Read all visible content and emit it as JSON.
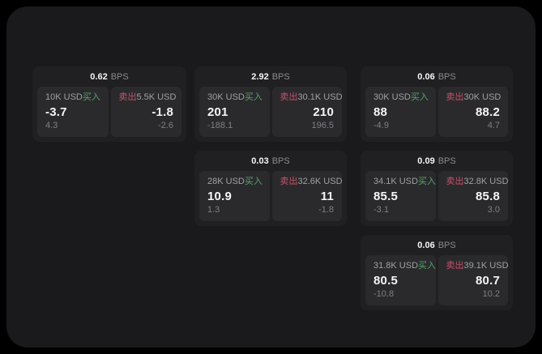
{
  "labels": {
    "bps_unit": "BPS",
    "buy": "买入",
    "sell": "卖出"
  },
  "colors": {
    "page_bg": "#000000",
    "window_bg": "#1a1a1c",
    "card_bg": "#202023",
    "panel_bg": "#2a2a2d",
    "buy_green": "#55a468",
    "sell_red": "#c9506a",
    "value_white": "#f5f5f6",
    "label_gray": "#9da0a3",
    "sub_gray": "#7f7f84"
  },
  "cards": [
    {
      "bps": "0.62",
      "buy": {
        "amount": "10K USD",
        "price": "-3.7",
        "sub": "4.3"
      },
      "sell": {
        "amount": "5.5K USD",
        "price": "-1.8",
        "sub": "-2.6"
      }
    },
    {
      "bps": "2.92",
      "buy": {
        "amount": "30K USD",
        "price": "201",
        "sub": "-188.1"
      },
      "sell": {
        "amount": "30.1K USD",
        "price": "210",
        "sub": "196.5"
      }
    },
    {
      "bps": "0.06",
      "buy": {
        "amount": "30K USD",
        "price": "88",
        "sub": "-4.9"
      },
      "sell": {
        "amount": "30K USD",
        "price": "88.2",
        "sub": "4.7"
      }
    },
    {
      "bps": "0.03",
      "buy": {
        "amount": "28K USD",
        "price": "10.9",
        "sub": "1.3"
      },
      "sell": {
        "amount": "32.6K USD",
        "price": "11",
        "sub": "-1.8"
      }
    },
    {
      "bps": "0.09",
      "buy": {
        "amount": "34.1K USD",
        "price": "85.5",
        "sub": "-3.1"
      },
      "sell": {
        "amount": "32.8K USD",
        "price": "85.8",
        "sub": "3.0"
      }
    },
    {
      "bps": "0.06",
      "buy": {
        "amount": "31.8K USD",
        "price": "80.5",
        "sub": "-10.8"
      },
      "sell": {
        "amount": "39.1K USD",
        "price": "80.7",
        "sub": "10.2"
      }
    }
  ]
}
